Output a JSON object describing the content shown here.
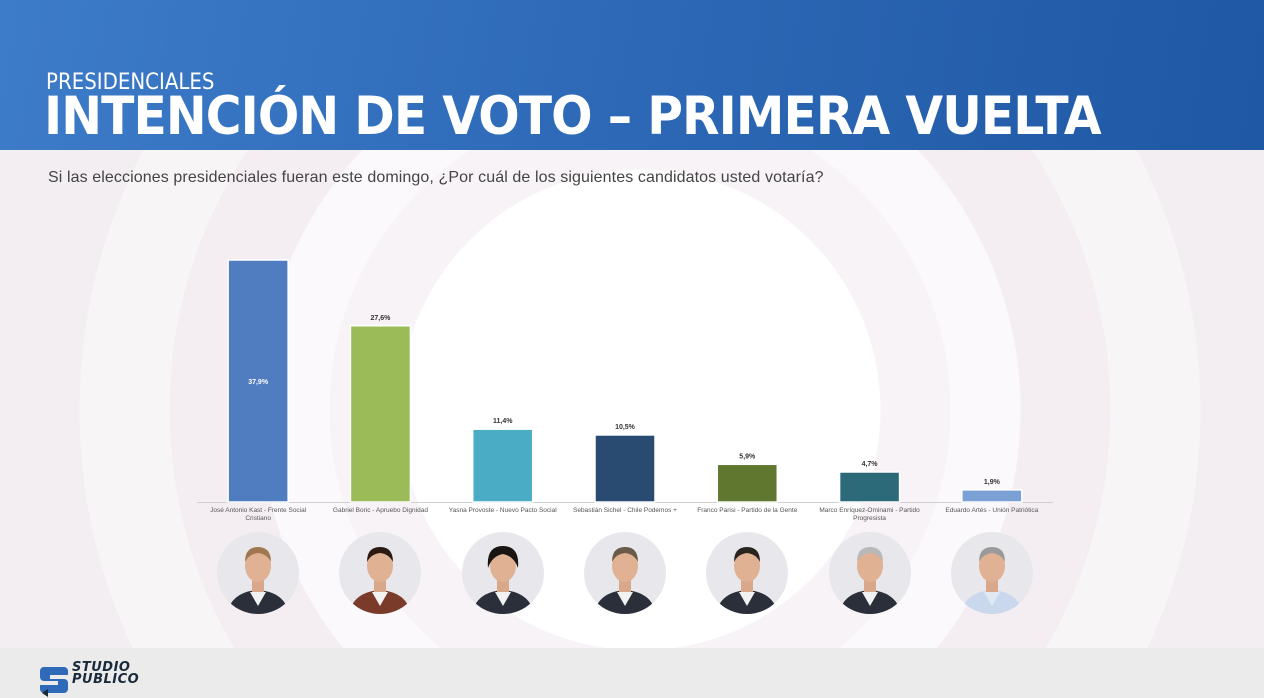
{
  "header": {
    "supertitle": "PRESIDENCIALES",
    "title": "INTENCIÓN DE VOTO – PRIMERA VUELTA"
  },
  "question": "Si las elecciones presidenciales fueran este domingo, ¿Por cuál de los siguientes candidatos usted votaría?",
  "chart_data": {
    "type": "bar",
    "title": "INTENCIÓN DE VOTO – PRIMERA VUELTA",
    "xlabel": "",
    "ylabel": "",
    "ylim": [
      0,
      40
    ],
    "grid": false,
    "legend": "none",
    "categories": [
      [
        "José Antonio Kast - Frente Social",
        "Cristiano"
      ],
      [
        "Gabriel Boric - Apruebo Dignidad"
      ],
      [
        "Yasna Provoste - Nuevo Pacto Social"
      ],
      [
        "Sebastián Sichel - Chile Podemos +"
      ],
      [
        "Franco Parisi - Partido de la Gente"
      ],
      [
        "Marco Enríquez-Ominami - Partido",
        "Progresista"
      ],
      [
        "Eduardo Artés - Unión Patriótica"
      ]
    ],
    "values": [
      37.9,
      27.6,
      11.4,
      10.5,
      5.9,
      4.7,
      1.9
    ],
    "value_labels": [
      "37,9%",
      "27,6%",
      "11,4%",
      "10,5%",
      "5,9%",
      "4,7%",
      "1,9%"
    ],
    "colors": [
      "#4f7dc0",
      "#9bbb59",
      "#4bacc6",
      "#294b72",
      "#60772f",
      "#2d6a79",
      "#7aa0d6"
    ]
  },
  "footer": {
    "logo_line1": "STUDIO",
    "logo_line2": "PUBLICO",
    "logo_icon": "studio-publico-logo-icon"
  },
  "photos": [
    "candidate-photo-kast",
    "candidate-photo-boric",
    "candidate-photo-provoste",
    "candidate-photo-sichel",
    "candidate-photo-parisi",
    "candidate-photo-enriquez-ominami",
    "candidate-photo-artes"
  ]
}
